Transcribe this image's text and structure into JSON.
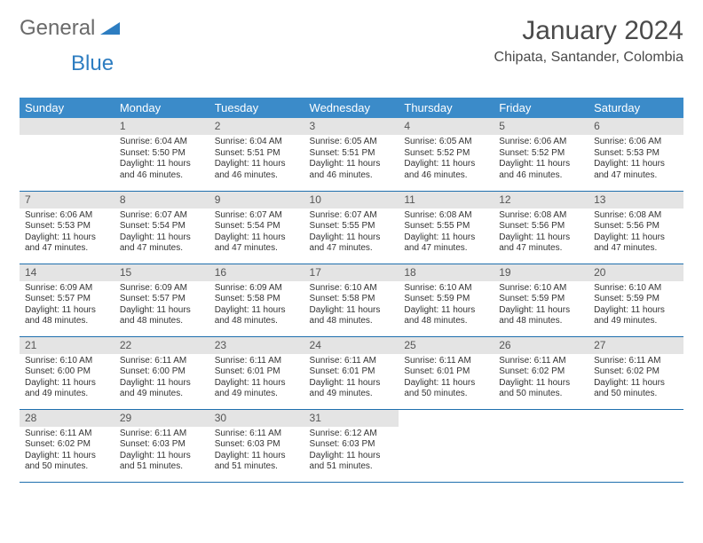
{
  "logo": {
    "general": "General",
    "blue": "Blue"
  },
  "title": "January 2024",
  "location": "Chipata, Santander, Colombia",
  "colors": {
    "header_bg": "#3b8bc9",
    "header_text": "#ffffff",
    "daynum_bg": "#e4e4e4",
    "daynum_text": "#555555",
    "cell_border": "#1f6fae",
    "body_text": "#333333",
    "logo_general": "#6a6a6a",
    "logo_blue": "#2d7dc1",
    "title_color": "#4a4a4a"
  },
  "weekdays": [
    "Sunday",
    "Monday",
    "Tuesday",
    "Wednesday",
    "Thursday",
    "Friday",
    "Saturday"
  ],
  "first_weekday_index": 1,
  "days": [
    {
      "n": 1,
      "sr": "6:04 AM",
      "ss": "5:50 PM",
      "dl": "11 hours and 46 minutes."
    },
    {
      "n": 2,
      "sr": "6:04 AM",
      "ss": "5:51 PM",
      "dl": "11 hours and 46 minutes."
    },
    {
      "n": 3,
      "sr": "6:05 AM",
      "ss": "5:51 PM",
      "dl": "11 hours and 46 minutes."
    },
    {
      "n": 4,
      "sr": "6:05 AM",
      "ss": "5:52 PM",
      "dl": "11 hours and 46 minutes."
    },
    {
      "n": 5,
      "sr": "6:06 AM",
      "ss": "5:52 PM",
      "dl": "11 hours and 46 minutes."
    },
    {
      "n": 6,
      "sr": "6:06 AM",
      "ss": "5:53 PM",
      "dl": "11 hours and 47 minutes."
    },
    {
      "n": 7,
      "sr": "6:06 AM",
      "ss": "5:53 PM",
      "dl": "11 hours and 47 minutes."
    },
    {
      "n": 8,
      "sr": "6:07 AM",
      "ss": "5:54 PM",
      "dl": "11 hours and 47 minutes."
    },
    {
      "n": 9,
      "sr": "6:07 AM",
      "ss": "5:54 PM",
      "dl": "11 hours and 47 minutes."
    },
    {
      "n": 10,
      "sr": "6:07 AM",
      "ss": "5:55 PM",
      "dl": "11 hours and 47 minutes."
    },
    {
      "n": 11,
      "sr": "6:08 AM",
      "ss": "5:55 PM",
      "dl": "11 hours and 47 minutes."
    },
    {
      "n": 12,
      "sr": "6:08 AM",
      "ss": "5:56 PM",
      "dl": "11 hours and 47 minutes."
    },
    {
      "n": 13,
      "sr": "6:08 AM",
      "ss": "5:56 PM",
      "dl": "11 hours and 47 minutes."
    },
    {
      "n": 14,
      "sr": "6:09 AM",
      "ss": "5:57 PM",
      "dl": "11 hours and 48 minutes."
    },
    {
      "n": 15,
      "sr": "6:09 AM",
      "ss": "5:57 PM",
      "dl": "11 hours and 48 minutes."
    },
    {
      "n": 16,
      "sr": "6:09 AM",
      "ss": "5:58 PM",
      "dl": "11 hours and 48 minutes."
    },
    {
      "n": 17,
      "sr": "6:10 AM",
      "ss": "5:58 PM",
      "dl": "11 hours and 48 minutes."
    },
    {
      "n": 18,
      "sr": "6:10 AM",
      "ss": "5:59 PM",
      "dl": "11 hours and 48 minutes."
    },
    {
      "n": 19,
      "sr": "6:10 AM",
      "ss": "5:59 PM",
      "dl": "11 hours and 48 minutes."
    },
    {
      "n": 20,
      "sr": "6:10 AM",
      "ss": "5:59 PM",
      "dl": "11 hours and 49 minutes."
    },
    {
      "n": 21,
      "sr": "6:10 AM",
      "ss": "6:00 PM",
      "dl": "11 hours and 49 minutes."
    },
    {
      "n": 22,
      "sr": "6:11 AM",
      "ss": "6:00 PM",
      "dl": "11 hours and 49 minutes."
    },
    {
      "n": 23,
      "sr": "6:11 AM",
      "ss": "6:01 PM",
      "dl": "11 hours and 49 minutes."
    },
    {
      "n": 24,
      "sr": "6:11 AM",
      "ss": "6:01 PM",
      "dl": "11 hours and 49 minutes."
    },
    {
      "n": 25,
      "sr": "6:11 AM",
      "ss": "6:01 PM",
      "dl": "11 hours and 50 minutes."
    },
    {
      "n": 26,
      "sr": "6:11 AM",
      "ss": "6:02 PM",
      "dl": "11 hours and 50 minutes."
    },
    {
      "n": 27,
      "sr": "6:11 AM",
      "ss": "6:02 PM",
      "dl": "11 hours and 50 minutes."
    },
    {
      "n": 28,
      "sr": "6:11 AM",
      "ss": "6:02 PM",
      "dl": "11 hours and 50 minutes."
    },
    {
      "n": 29,
      "sr": "6:11 AM",
      "ss": "6:03 PM",
      "dl": "11 hours and 51 minutes."
    },
    {
      "n": 30,
      "sr": "6:11 AM",
      "ss": "6:03 PM",
      "dl": "11 hours and 51 minutes."
    },
    {
      "n": 31,
      "sr": "6:12 AM",
      "ss": "6:03 PM",
      "dl": "11 hours and 51 minutes."
    }
  ],
  "labels": {
    "sunrise": "Sunrise:",
    "sunset": "Sunset:",
    "daylight": "Daylight:"
  }
}
